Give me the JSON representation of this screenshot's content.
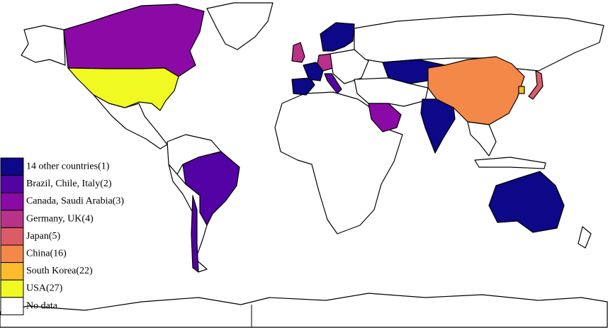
{
  "legend": {
    "items": [
      {
        "label": "14 other countries(1)",
        "color": "#0d0887"
      },
      {
        "label": "Brazil, Chile, Italy(2)",
        "color": "#5302a3"
      },
      {
        "label": "Canada, Saudi Arabia(3)",
        "color": "#8b0aa5"
      },
      {
        "label": "Germany, UK(4)",
        "color": "#b83289"
      },
      {
        "label": "Japan(5)",
        "color": "#db5c68"
      },
      {
        "label": "China(16)",
        "color": "#f48849"
      },
      {
        "label": "South Korea(22)",
        "color": "#febc2a"
      },
      {
        "label": "USA(27)",
        "color": "#f0f921"
      },
      {
        "label": "No data",
        "color": "#ffffff"
      }
    ]
  }
}
